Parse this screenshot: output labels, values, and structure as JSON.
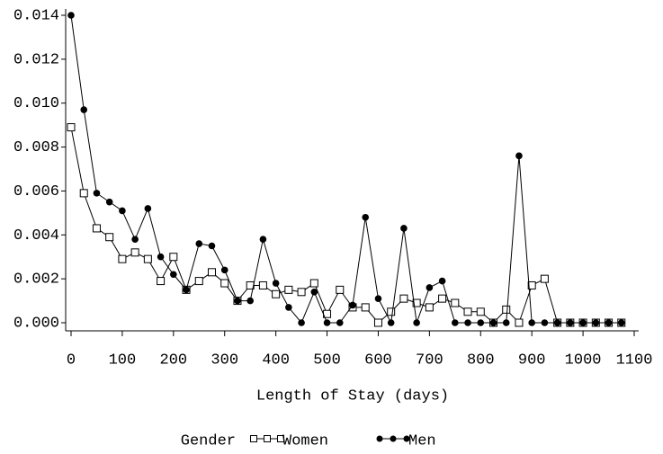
{
  "chart_data": {
    "type": "line",
    "xlabel": "Length of Stay (days)",
    "legend_title": "Gender",
    "x": [
      0,
      25,
      50,
      75,
      100,
      125,
      150,
      175,
      200,
      225,
      250,
      275,
      300,
      325,
      350,
      375,
      400,
      425,
      450,
      475,
      500,
      525,
      550,
      575,
      600,
      625,
      650,
      675,
      700,
      725,
      750,
      775,
      800,
      825,
      850,
      875,
      900,
      925,
      950,
      975,
      1000,
      1025,
      1050,
      1075
    ],
    "series": [
      {
        "name": "Women",
        "color": "#000000",
        "marker": "square",
        "values": [
          0.0089,
          0.0059,
          0.0043,
          0.0039,
          0.0029,
          0.0032,
          0.0029,
          0.0019,
          0.003,
          0.0015,
          0.0019,
          0.0023,
          0.0018,
          0.001,
          0.0017,
          0.0017,
          0.0013,
          0.0015,
          0.0014,
          0.0018,
          0.0004,
          0.0015,
          0.0007,
          0.0007,
          0,
          0.0005,
          0.0011,
          0.0009,
          0.0007,
          0.0011,
          0.0009,
          0.0005,
          0.0005,
          0,
          0.0006,
          0,
          0.0017,
          0.002,
          0,
          0,
          0,
          0,
          0,
          0
        ]
      },
      {
        "name": "Men",
        "color": "#000000",
        "marker": "circle",
        "values": [
          0.014,
          0.0097,
          0.0059,
          0.0055,
          0.0051,
          0.0038,
          0.0052,
          0.003,
          0.0022,
          0.0015,
          0.0036,
          0.0035,
          0.0024,
          0.001,
          0.001,
          0.0038,
          0.0018,
          0.0007,
          0,
          0.0014,
          0,
          0,
          0.0008,
          0.0048,
          0.0011,
          0,
          0.0043,
          0,
          0.0016,
          0.0019,
          0,
          0,
          0,
          0,
          0,
          0.0076,
          0,
          0,
          0,
          0,
          0,
          0,
          0,
          0
        ]
      }
    ],
    "xlim": [
      0,
      1100
    ],
    "xticks": [
      0,
      100,
      200,
      300,
      400,
      500,
      600,
      700,
      800,
      900,
      1000,
      1100
    ],
    "ylim": [
      0,
      0.014
    ],
    "yticks": [
      {
        "value": 0,
        "label": "0.000"
      },
      {
        "value": 0.002,
        "label": "0.002"
      },
      {
        "value": 0.004,
        "label": "0.004"
      },
      {
        "value": 0.006,
        "label": "0.006"
      },
      {
        "value": 0.008,
        "label": "0.008"
      },
      {
        "value": 0.01,
        "label": "0.010"
      },
      {
        "value": 0.012,
        "label": "0.012"
      },
      {
        "value": 0.014,
        "label": "0.014"
      }
    ],
    "grid": false
  }
}
